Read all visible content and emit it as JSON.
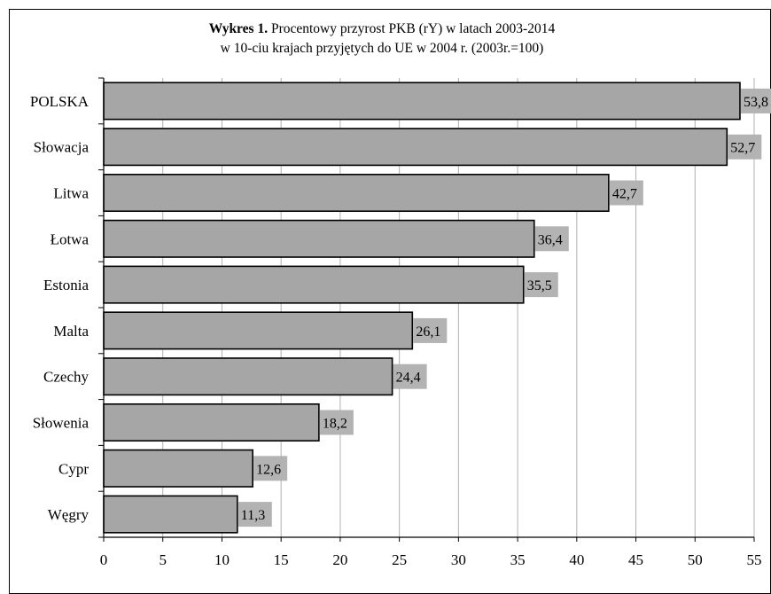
{
  "chart_data": {
    "type": "bar",
    "orientation": "horizontal",
    "title_prefix": "Wykres 1.",
    "title_text": "Procentowy przyrost PKB (rY)  w latach 2003-2014",
    "subtitle": "w 10-ciu krajach przyjętych do UE w 2004 r.  (2003r.=100)",
    "categories": [
      "POLSKA",
      "Słowacja",
      "Litwa",
      "Łotwa",
      "Estonia",
      "Malta",
      "Czechy",
      "Słowenia",
      "Cypr",
      "Węgry"
    ],
    "values": [
      53.8,
      52.7,
      42.7,
      36.4,
      35.5,
      26.1,
      24.4,
      18.2,
      12.6,
      11.3
    ],
    "data_labels": [
      "53,8",
      "52,7",
      "42,7",
      "36,4",
      "35,5",
      "26,1",
      "24,4",
      "18,2",
      "12,6",
      "11,3"
    ],
    "x_ticks": [
      "0",
      "5",
      "10",
      "15",
      "20",
      "25",
      "30",
      "35",
      "40",
      "45",
      "50",
      "55"
    ],
    "xlim": [
      0,
      55
    ],
    "grid": "vertical",
    "bar_color": "#a6a6a6",
    "label_bg_color": "#b3b3b3",
    "grid_color": "#b0b0b0",
    "xlabel": "",
    "ylabel": ""
  }
}
